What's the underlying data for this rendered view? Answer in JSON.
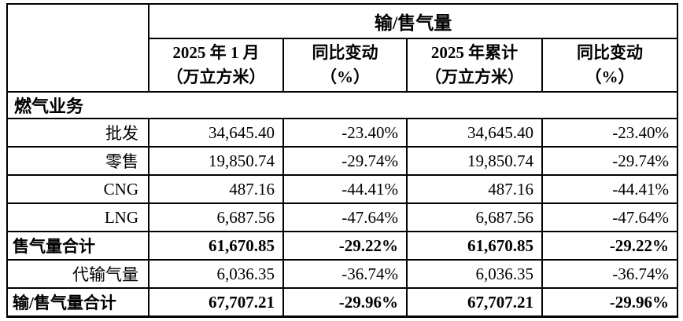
{
  "table": {
    "top_header": "输/售气量",
    "columns": [
      {
        "line1": "2025 年 1 月",
        "line2": "（万立方米）"
      },
      {
        "line1": "同比变动",
        "line2": "（%）"
      },
      {
        "line1": "2025 年累计",
        "line2": "（万立方米）"
      },
      {
        "line1": "同比变动",
        "line2": "（%）"
      }
    ],
    "section_label": "燃气业务",
    "rows": [
      {
        "label": "批发",
        "values": [
          "34,645.40",
          "-23.40%",
          "34,645.40",
          "-23.40%"
        ]
      },
      {
        "label": "零售",
        "values": [
          "19,850.74",
          "-29.74%",
          "19,850.74",
          "-29.74%"
        ]
      },
      {
        "label": "CNG",
        "values": [
          "487.16",
          "-44.41%",
          "487.16",
          "-44.41%"
        ]
      },
      {
        "label": "LNG",
        "values": [
          "6,687.56",
          "-47.64%",
          "6,687.56",
          "-47.64%"
        ]
      },
      {
        "label": "售气量合计",
        "values": [
          "61,670.85",
          "-29.22%",
          "61,670.85",
          "-29.22%"
        ]
      },
      {
        "label": "代输气量",
        "values": [
          "6,036.35",
          "-36.74%",
          "6,036.35",
          "-36.74%"
        ]
      },
      {
        "label": "输/售气量合计",
        "values": [
          "67,707.21",
          "-29.96%",
          "67,707.21",
          "-29.96%"
        ]
      }
    ],
    "colors": {
      "border": "#000000",
      "text": "#000000",
      "background": "#ffffff"
    }
  }
}
